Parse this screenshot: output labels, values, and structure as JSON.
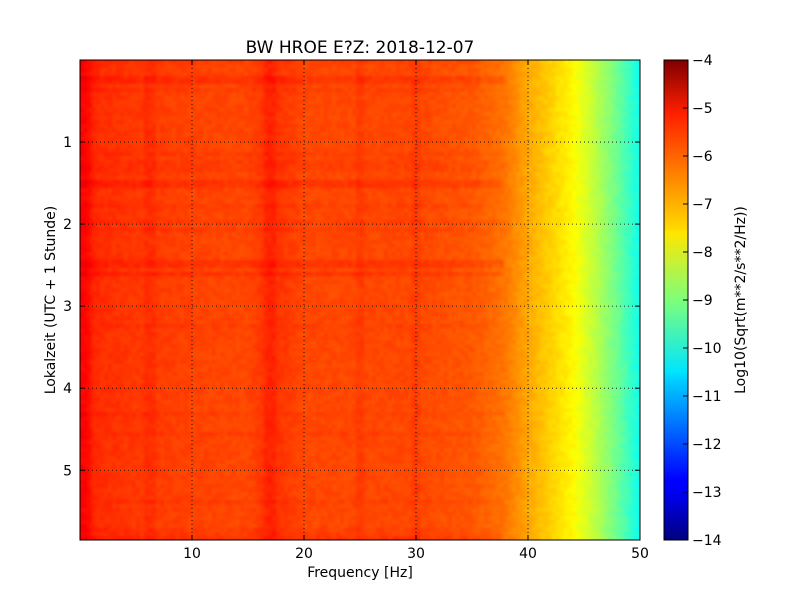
{
  "chart_data": {
    "type": "heatmap",
    "title": "BW HROE E?Z: 2018-12-07",
    "xlabel": "Frequency [Hz]",
    "ylabel": "Lokalzeit (UTC + 1 Stunde)",
    "xlim": [
      0,
      50
    ],
    "ylim": [
      5.85,
      0
    ],
    "x_ticks": [
      10,
      20,
      30,
      40,
      50
    ],
    "x_tick_labels": [
      "10",
      "20",
      "30",
      "40",
      "50"
    ],
    "y_ticks": [
      1,
      2,
      3,
      4,
      5
    ],
    "y_tick_labels": [
      "1",
      "2",
      "3",
      "4",
      "5"
    ],
    "grid": true,
    "colormap": "jet",
    "colorbar": {
      "label": "Log10(Sqrt(m**2/s**2/Hz))",
      "min": -14,
      "max": -4,
      "ticks": [
        -4,
        -5,
        -6,
        -7,
        -8,
        -9,
        -10,
        -11,
        -12,
        -13,
        -14
      ],
      "tick_labels": [
        "−4",
        "−5",
        "−6",
        "−7",
        "−8",
        "−9",
        "−10",
        "−11",
        "−12",
        "−13",
        "−14"
      ]
    },
    "spectrum_profile": {
      "frequency_hz": [
        0,
        1,
        2,
        5,
        10,
        15,
        17,
        20,
        25,
        30,
        35,
        38,
        40,
        42,
        44,
        46,
        48,
        50
      ],
      "log10_amplitude": [
        -5.2,
        -5.6,
        -5.7,
        -5.8,
        -5.9,
        -5.95,
        -5.7,
        -5.95,
        -5.95,
        -5.95,
        -6.1,
        -6.4,
        -6.9,
        -7.3,
        -7.7,
        -8.4,
        -9.2,
        -10.1
      ]
    },
    "bright_time_bands_hours": [
      0.25,
      1.5,
      2.5,
      2.6,
      5.82
    ],
    "bright_frequency_bands_hz": [
      0.7,
      6.3,
      17,
      25,
      30
    ]
  }
}
